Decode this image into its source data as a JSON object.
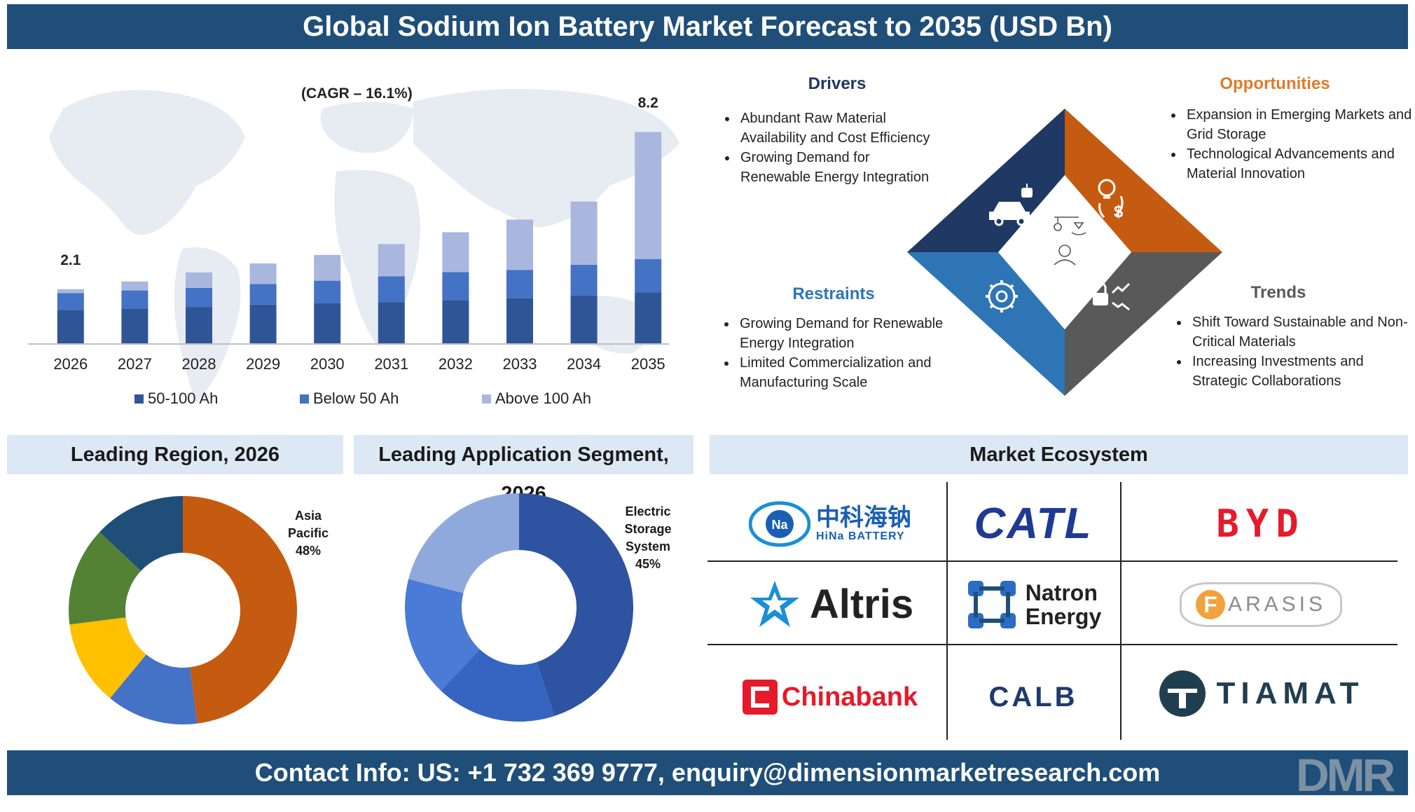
{
  "header": {
    "title": "Global Sodium Ion Battery Market Forecast to 2035 (USD Bn)"
  },
  "footer": {
    "contact": "Contact Info: US: +1 732 369 9777, enquiry@dimensionmarketresearch.com"
  },
  "chart_data": [
    {
      "type": "bar",
      "stacked": true,
      "title": "",
      "annotation": "(CAGR – 16.1%)",
      "categories": [
        "2026",
        "2027",
        "2028",
        "2029",
        "2030",
        "2031",
        "2032",
        "2033",
        "2034",
        "2035"
      ],
      "first_label": "2.1",
      "last_label": "8.2",
      "ylim": [
        0,
        8.7
      ],
      "series": [
        {
          "name": "50-100 Ah",
          "color": "#2f5597",
          "values": [
            1.3,
            1.35,
            1.4,
            1.5,
            1.55,
            1.6,
            1.68,
            1.75,
            1.85,
            1.97
          ]
        },
        {
          "name": "Below 50 Ah",
          "color": "#4472c4",
          "values": [
            0.65,
            0.7,
            0.75,
            0.8,
            0.88,
            1.0,
            1.08,
            1.1,
            1.2,
            1.3
          ]
        },
        {
          "name": "Above 100 Ah",
          "color": "#a9b7df",
          "values": [
            0.15,
            0.35,
            0.6,
            0.8,
            1.0,
            1.25,
            1.55,
            1.95,
            2.45,
            4.93
          ]
        }
      ]
    },
    {
      "type": "pie",
      "donut": true,
      "title": "Leading Region, 2026",
      "label": [
        "Asia",
        "Pacific",
        "48%"
      ],
      "slices": [
        {
          "value": 48,
          "color": "#c55a11"
        },
        {
          "value": 13,
          "color": "#4472c4"
        },
        {
          "value": 12,
          "color": "#ffc000"
        },
        {
          "value": 14,
          "color": "#548235"
        },
        {
          "value": 13,
          "color": "#1f4e79"
        }
      ]
    },
    {
      "type": "pie",
      "donut": true,
      "title": "Leading Application Segment, 2026",
      "label": [
        "Electric",
        "Storage",
        "System",
        "45%"
      ],
      "slices": [
        {
          "value": 45,
          "color": "#2e53a0"
        },
        {
          "value": 17,
          "color": "#3565c0"
        },
        {
          "value": 17,
          "color": "#4a7bd6"
        },
        {
          "value": 21,
          "color": "#8fa9dc"
        }
      ]
    }
  ],
  "drivers": {
    "title": "Drivers",
    "color": "#1f3864",
    "items": [
      "Abundant Raw Material Availability and Cost Efficiency",
      "Growing Demand for Renewable Energy Integration"
    ]
  },
  "opportunities": {
    "title": "Opportunities",
    "color": "#e07b28",
    "items": [
      "Expansion in Emerging Markets and Grid Storage",
      "Technological Advancements and Material Innovation"
    ]
  },
  "restraints": {
    "title": "Restraints",
    "color": "#2e75b6",
    "items": [
      "Growing Demand for Renewable Energy Integration",
      "Limited Commercialization and Manufacturing Scale"
    ]
  },
  "trends": {
    "title": "Trends",
    "color": "#595959",
    "items": [
      "Shift Toward Sustainable and Non-Critical Materials",
      "Increasing Investments and Strategic Collaborations"
    ]
  },
  "diamond": {
    "top_left_color": "#1f3864",
    "top_right_color": "#c55a11",
    "bottom_left_color": "#2e75b6",
    "bottom_right_color": "#595959",
    "icons": [
      "car-robot-icon",
      "bulb-dollar-cycle-icon",
      "gear-network-icon",
      "lock-trend-icon",
      "person-lamp-icon"
    ]
  },
  "sections": {
    "region": "Leading Region, 2026",
    "application": "Leading Application Segment, 2026",
    "ecosystem": "Market Ecosystem"
  },
  "ecosystem": {
    "hina_cn": "中科海钠",
    "hina_en": "HiNa BATTERY",
    "hina_badge": "Na",
    "catl": "CATL",
    "byd": "BYD",
    "altris": "Altris",
    "natron_1": "Natron",
    "natron_2": "Energy",
    "farasis_f": "F",
    "farasis_rest": "ARASIS",
    "chinabank": "Chinabank",
    "calb": "CALB",
    "tiamat": "TIAMAT"
  },
  "watermark": "DMR"
}
